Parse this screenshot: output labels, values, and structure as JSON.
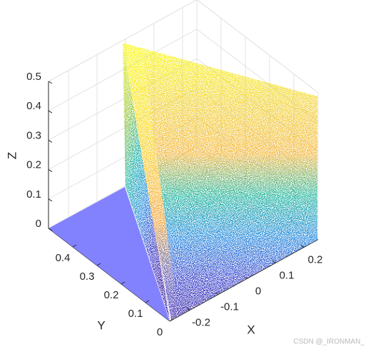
{
  "chart_data": {
    "type": "scatter3d",
    "xlabel": "X",
    "ylabel": "Y",
    "zlabel": "Z",
    "xlim": [
      -0.27,
      0.25
    ],
    "ylim": [
      0,
      0.5
    ],
    "zlim": [
      0,
      0.5
    ],
    "xticks": [
      -0.2,
      -0.1,
      0,
      0.1,
      0.2
    ],
    "yticks": [
      0,
      0.1,
      0.2,
      0.3,
      0.4
    ],
    "zticks": [
      0,
      0.1,
      0.2,
      0.3,
      0.4,
      0.5
    ],
    "grid": true,
    "plane_color": "#7b7bff",
    "watermark": "CSDN @_IRONMAN_"
  }
}
